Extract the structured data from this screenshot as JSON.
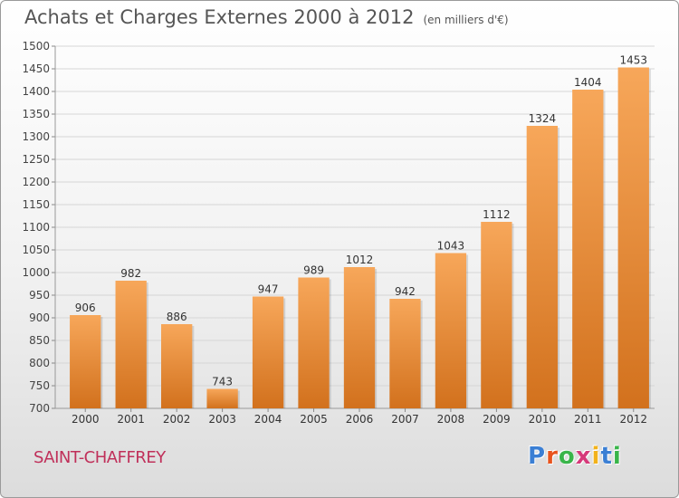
{
  "title": "Achats et Charges Externes 2000 à 2012",
  "unit": "(en milliers d'€)",
  "commune": "SAINT-CHAFFREY",
  "logo": {
    "letters": [
      "P",
      "r",
      "o",
      "x",
      "i",
      "t",
      "i"
    ],
    "colors": [
      "#3b7fd4",
      "#e8541e",
      "#39b54a",
      "#d63a7a",
      "#f2b21b",
      "#3b7fd4",
      "#39b54a"
    ]
  },
  "colors": {
    "bar_light": "#f7a75a",
    "bar_dark": "#d2711d",
    "grid": "#d6d6d6"
  },
  "chart_data": {
    "type": "bar",
    "title": "Achats et Charges Externes 2000 à 2012",
    "xlabel": "",
    "ylabel": "en milliers d'€",
    "categories": [
      "2000",
      "2001",
      "2002",
      "2003",
      "2004",
      "2005",
      "2006",
      "2007",
      "2008",
      "2009",
      "2010",
      "2011",
      "2012"
    ],
    "values": [
      906,
      982,
      886,
      743,
      947,
      989,
      1012,
      942,
      1043,
      1112,
      1324,
      1404,
      1453
    ],
    "ylim": [
      700,
      1500
    ],
    "yticks": [
      700,
      750,
      800,
      850,
      900,
      950,
      1000,
      1050,
      1100,
      1150,
      1200,
      1250,
      1300,
      1350,
      1400,
      1450,
      1500
    ],
    "grid": true
  }
}
